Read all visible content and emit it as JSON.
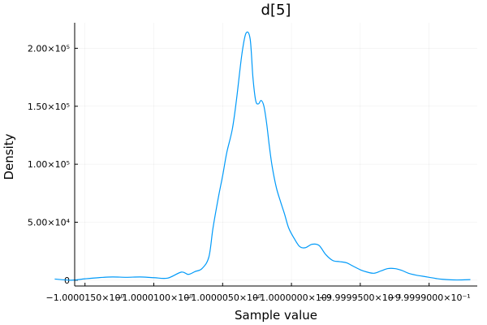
{
  "chart_data": {
    "type": "line",
    "title": "d[5]",
    "xlabel": "Sample value",
    "ylabel": "Density",
    "xlim": [
      -1.00001575,
      -0.9999865
    ],
    "ylim": [
      -5000,
      222000
    ],
    "grid": true,
    "legend": "none",
    "line_color": "#009af9",
    "xticks": [
      {
        "value": -1.000015,
        "label": "−1.0000150×10⁰"
      },
      {
        "value": -1.00001,
        "label": "−1.0000100×10⁰"
      },
      {
        "value": -1.000005,
        "label": "−1.0000050×10⁰"
      },
      {
        "value": -1.0,
        "label": "−1.0000000×10⁰"
      },
      {
        "value": -0.999995,
        "label": "−9.9999500×10⁻¹"
      },
      {
        "value": -0.99999,
        "label": "−9.9999000×10⁻¹"
      }
    ],
    "yticks": [
      {
        "value": 0,
        "label": "0"
      },
      {
        "value": 50000,
        "label": "5.00×10⁴"
      },
      {
        "value": 100000,
        "label": "1.00×10⁵"
      },
      {
        "value": 150000,
        "label": "1.50×10⁵"
      },
      {
        "value": 200000,
        "label": "2.00×10⁵"
      }
    ],
    "series": [
      {
        "name": "d[5]",
        "x": [
          -1.0000172,
          -1.000016,
          -1.000015,
          -1.000014,
          -1.000013,
          -1.000012,
          -1.000011,
          -1.00001,
          -1.000009,
          -1.000008,
          -1.0000075,
          -1.000007,
          -1.0000065,
          -1.000006,
          -1.0000057,
          -1.0000053,
          -1.000005,
          -1.0000047,
          -1.0000043,
          -1.000004,
          -1.0000036,
          -1.0000033,
          -1.000003,
          -1.0000028,
          -1.0000026,
          -1.0000024,
          -1.0000022,
          -1.000002,
          -1.0000018,
          -1.0000016,
          -1.0000014,
          -1.0000011,
          -1.0000008,
          -1.0000005,
          -1.0000002,
          -0.9999998,
          -0.9999994,
          -0.999999,
          -0.9999985,
          -0.999998,
          -0.9999975,
          -0.999997,
          -0.9999965,
          -0.999996,
          -0.9999955,
          -0.999995,
          -0.9999945,
          -0.999994,
          -0.9999935,
          -0.999993,
          -0.9999925,
          -0.999992,
          -0.9999915,
          -0.999991,
          -0.9999905,
          -0.99999,
          -0.9999895,
          -0.999989,
          -0.999988,
          -0.999987
        ],
        "y": [
          1000,
          0,
          1200,
          2200,
          2800,
          2500,
          2800,
          2200,
          1800,
          7000,
          5000,
          7500,
          10000,
          20000,
          45000,
          72000,
          90000,
          110000,
          130000,
          155000,
          195000,
          213000,
          208000,
          175000,
          155000,
          152000,
          155000,
          150000,
          135000,
          115000,
          98000,
          80000,
          68000,
          57000,
          45000,
          36000,
          29000,
          28000,
          31000,
          30000,
          22000,
          17000,
          16000,
          15000,
          12000,
          9000,
          7000,
          6000,
          8000,
          10000,
          10000,
          8500,
          6000,
          4500,
          3500,
          2500,
          1500,
          800,
          200,
          500
        ]
      }
    ]
  }
}
